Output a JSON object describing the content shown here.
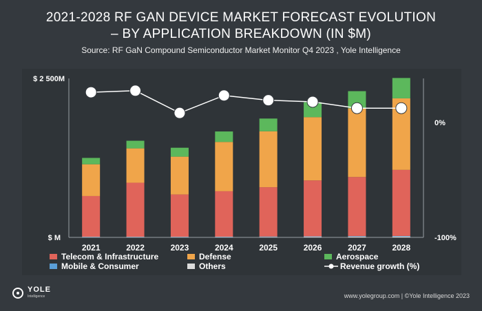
{
  "header": {
    "title_line1": "2021-2028 RF GAN DEVICE MARKET FORECAST EVOLUTION",
    "title_line2": "– BY APPLICATION BREAKDOWN (IN $M)",
    "source": "Source: RF GaN Compound Semiconductor Market Monitor Q4 2023 , Yole Intelligence"
  },
  "footer": {
    "logo_name": "YOLE",
    "logo_sub": "Intelligence",
    "credit": "www.yolegroup.com | ©Yole Intelligence 2023"
  },
  "chart_data": {
    "type": "bar",
    "stacked": true,
    "categories": [
      "2021",
      "2022",
      "2023",
      "2024",
      "2025",
      "2026",
      "2027",
      "2028"
    ],
    "y_left_ticks": [
      "$ 2 500M",
      "$ M"
    ],
    "ylim_left": [
      0,
      2500
    ],
    "y_right_ticks": [
      "0%",
      "-100%"
    ],
    "ylim_right": [
      -100,
      0
    ],
    "series": [
      {
        "name": "Telecom & Infrastructure",
        "color": "#e0645a",
        "values": [
          640,
          850,
          665,
          715,
          775,
          880,
          930,
          1040
        ]
      },
      {
        "name": "Defense",
        "color": "#f0a54a",
        "values": [
          500,
          540,
          595,
          775,
          880,
          995,
          1080,
          1125
        ]
      },
      {
        "name": "Aerospace",
        "color": "#5cb85c",
        "values": [
          100,
          120,
          140,
          165,
          200,
          235,
          270,
          320
        ]
      },
      {
        "name": "Mobile & Consumer",
        "color": "#5a9fd8",
        "values": [
          5,
          5,
          5,
          5,
          6,
          6,
          8,
          8
        ]
      },
      {
        "name": "Others",
        "color": "#dcdcdc",
        "values": [
          5,
          5,
          5,
          6,
          8,
          10,
          12,
          14
        ]
      }
    ],
    "line_series": {
      "name": "Revenue growth (%)",
      "color": "#ffffff",
      "values": [
        19,
        20,
        6,
        17,
        14,
        13,
        9,
        9
      ]
    },
    "legend_position": "bottom",
    "grid": false
  }
}
